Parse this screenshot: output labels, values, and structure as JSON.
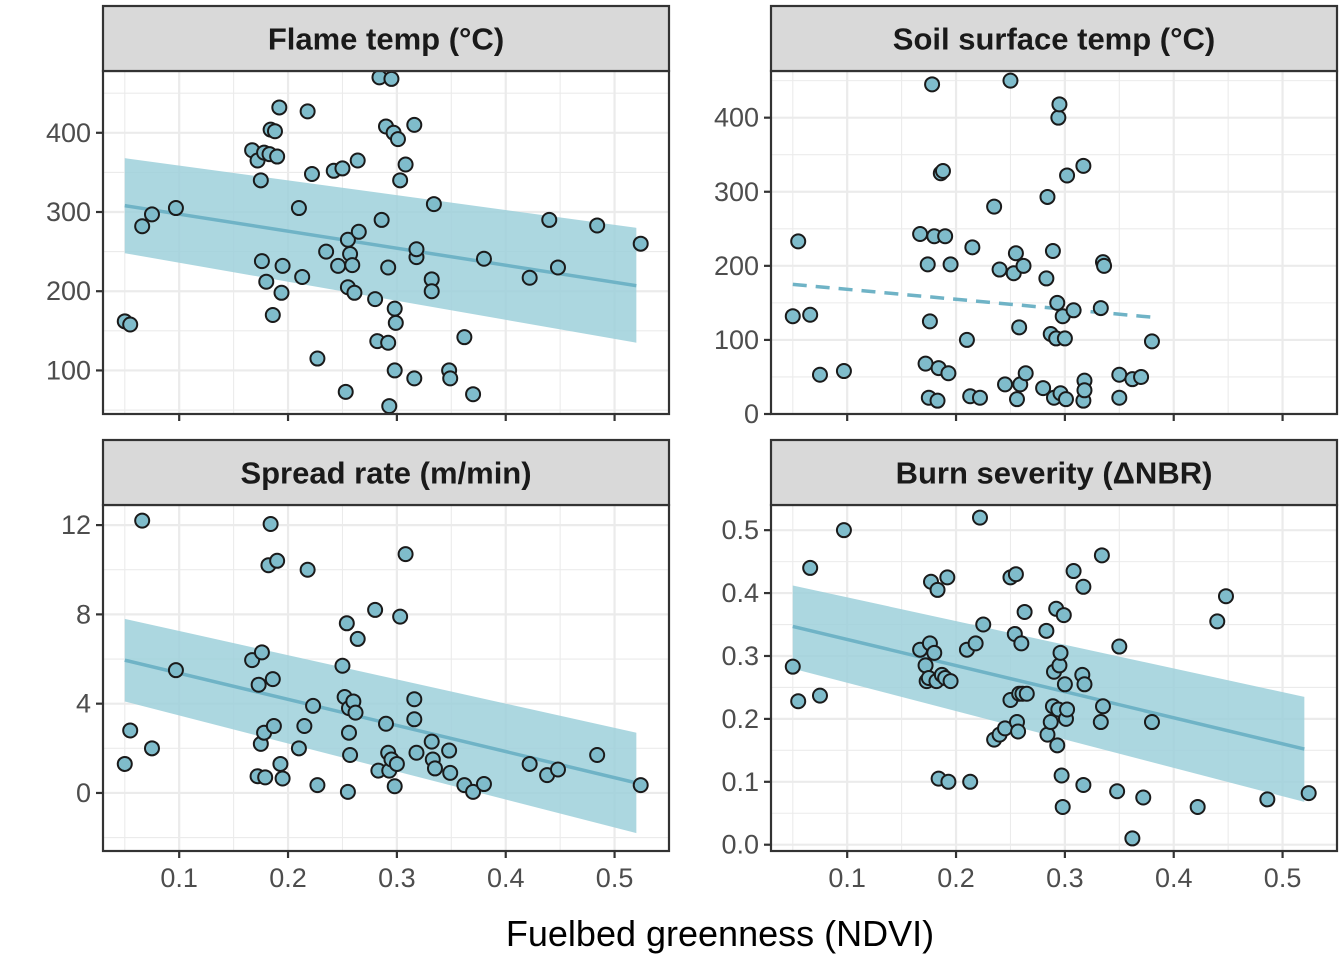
{
  "xlabel": "Fuelbed greenness (NDVI)",
  "colors": {
    "point_fill": "#7FBCCB",
    "point_stroke": "#1a1a1a",
    "line": "#6FB3C6",
    "ribbon": "#9ED0DB",
    "grid": "#EBEBEB",
    "strip": "#D9D9D9"
  },
  "chart_data": [
    {
      "type": "scatter",
      "title": "Flame temp (°C)",
      "xlim": [
        0.03,
        0.55
      ],
      "ylim": [
        45,
        478
      ],
      "xticks": [
        0.1,
        0.2,
        0.3,
        0.4,
        0.5
      ],
      "xtick_labels": [
        "0.1",
        "0.2",
        "0.3",
        "0.4",
        "0.5"
      ],
      "yticks": [
        100,
        200,
        300,
        400
      ],
      "ytick_labels": [
        "100",
        "200",
        "300",
        "400"
      ],
      "fit": {
        "style": "solid",
        "x": [
          0.05,
          0.52
        ],
        "y": [
          308,
          207
        ],
        "ci_lower": [
          248,
          135
        ],
        "ci_upper": [
          368,
          280
        ]
      },
      "points": [
        [
          0.05,
          162
        ],
        [
          0.055,
          158
        ],
        [
          0.066,
          282
        ],
        [
          0.075,
          297
        ],
        [
          0.097,
          305
        ],
        [
          0.167,
          378
        ],
        [
          0.172,
          365
        ],
        [
          0.175,
          340
        ],
        [
          0.176,
          238
        ],
        [
          0.178,
          375
        ],
        [
          0.18,
          212
        ],
        [
          0.183,
          373
        ],
        [
          0.184,
          404
        ],
        [
          0.186,
          170
        ],
        [
          0.188,
          402
        ],
        [
          0.19,
          370
        ],
        [
          0.192,
          432
        ],
        [
          0.194,
          198
        ],
        [
          0.195,
          232
        ],
        [
          0.21,
          305
        ],
        [
          0.213,
          218
        ],
        [
          0.218,
          427
        ],
        [
          0.222,
          348
        ],
        [
          0.227,
          115
        ],
        [
          0.235,
          250
        ],
        [
          0.242,
          352
        ],
        [
          0.246,
          232
        ],
        [
          0.25,
          355
        ],
        [
          0.253,
          73
        ],
        [
          0.255,
          205
        ],
        [
          0.255,
          265
        ],
        [
          0.257,
          247
        ],
        [
          0.259,
          233
        ],
        [
          0.261,
          198
        ],
        [
          0.264,
          365
        ],
        [
          0.265,
          275
        ],
        [
          0.28,
          190
        ],
        [
          0.282,
          137
        ],
        [
          0.284,
          470
        ],
        [
          0.286,
          290
        ],
        [
          0.29,
          408
        ],
        [
          0.292,
          135
        ],
        [
          0.292,
          230
        ],
        [
          0.293,
          55
        ],
        [
          0.295,
          468
        ],
        [
          0.297,
          400
        ],
        [
          0.298,
          100
        ],
        [
          0.298,
          178
        ],
        [
          0.299,
          160
        ],
        [
          0.301,
          392
        ],
        [
          0.303,
          340
        ],
        [
          0.308,
          360
        ],
        [
          0.316,
          90
        ],
        [
          0.316,
          410
        ],
        [
          0.318,
          243
        ],
        [
          0.318,
          253
        ],
        [
          0.332,
          215
        ],
        [
          0.332,
          200
        ],
        [
          0.334,
          310
        ],
        [
          0.348,
          100
        ],
        [
          0.349,
          90
        ],
        [
          0.362,
          142
        ],
        [
          0.37,
          70
        ],
        [
          0.38,
          241
        ],
        [
          0.422,
          217
        ],
        [
          0.44,
          290
        ],
        [
          0.448,
          230
        ],
        [
          0.484,
          283
        ],
        [
          0.524,
          260
        ]
      ]
    },
    {
      "type": "scatter",
      "title": "Soil surface temp (°C)",
      "xlim": [
        0.03,
        0.55
      ],
      "ylim": [
        0,
        463
      ],
      "xticks": [
        0.1,
        0.2,
        0.3,
        0.4,
        0.5
      ],
      "xtick_labels": [
        "0.1",
        "0.2",
        "0.3",
        "0.4",
        "0.5"
      ],
      "yticks": [
        0,
        100,
        200,
        300,
        400
      ],
      "ytick_labels": [
        "0",
        "100",
        "200",
        "300",
        "400"
      ],
      "fit": {
        "style": "dashed",
        "x": [
          0.05,
          0.385
        ],
        "y": [
          175,
          130
        ]
      },
      "points": [
        [
          0.05,
          132
        ],
        [
          0.055,
          233
        ],
        [
          0.066,
          134
        ],
        [
          0.075,
          53
        ],
        [
          0.097,
          58
        ],
        [
          0.167,
          243
        ],
        [
          0.172,
          68
        ],
        [
          0.174,
          202
        ],
        [
          0.175,
          22
        ],
        [
          0.176,
          125
        ],
        [
          0.178,
          445
        ],
        [
          0.18,
          240
        ],
        [
          0.183,
          18
        ],
        [
          0.184,
          62
        ],
        [
          0.186,
          325
        ],
        [
          0.188,
          328
        ],
        [
          0.19,
          240
        ],
        [
          0.193,
          55
        ],
        [
          0.195,
          202
        ],
        [
          0.21,
          100
        ],
        [
          0.213,
          24
        ],
        [
          0.215,
          225
        ],
        [
          0.222,
          22
        ],
        [
          0.235,
          280
        ],
        [
          0.24,
          195
        ],
        [
          0.245,
          40
        ],
        [
          0.25,
          450
        ],
        [
          0.253,
          190
        ],
        [
          0.255,
          217
        ],
        [
          0.256,
          20
        ],
        [
          0.258,
          117
        ],
        [
          0.259,
          40
        ],
        [
          0.262,
          200
        ],
        [
          0.264,
          55
        ],
        [
          0.28,
          35
        ],
        [
          0.283,
          183
        ],
        [
          0.284,
          293
        ],
        [
          0.287,
          108
        ],
        [
          0.289,
          220
        ],
        [
          0.29,
          22
        ],
        [
          0.292,
          102
        ],
        [
          0.293,
          150
        ],
        [
          0.294,
          400
        ],
        [
          0.295,
          418
        ],
        [
          0.296,
          28
        ],
        [
          0.298,
          132
        ],
        [
          0.3,
          102
        ],
        [
          0.301,
          20
        ],
        [
          0.302,
          322
        ],
        [
          0.308,
          140
        ],
        [
          0.317,
          18
        ],
        [
          0.317,
          335
        ],
        [
          0.318,
          45
        ],
        [
          0.318,
          32
        ],
        [
          0.333,
          143
        ],
        [
          0.335,
          205
        ],
        [
          0.336,
          200
        ],
        [
          0.35,
          22
        ],
        [
          0.35,
          53
        ],
        [
          0.362,
          47
        ],
        [
          0.37,
          50
        ],
        [
          0.38,
          98
        ]
      ]
    },
    {
      "type": "scatter",
      "title": "Spread rate (m/min)",
      "xlim": [
        0.03,
        0.55
      ],
      "ylim": [
        -2.6,
        12.9
      ],
      "xticks": [
        0.1,
        0.2,
        0.3,
        0.4,
        0.5
      ],
      "xtick_labels": [
        "0.1",
        "0.2",
        "0.3",
        "0.4",
        "0.5"
      ],
      "yticks": [
        0,
        4,
        8,
        12
      ],
      "ytick_labels": [
        "0",
        "4",
        "8",
        "12"
      ],
      "fit": {
        "style": "solid",
        "x": [
          0.05,
          0.52
        ],
        "y": [
          5.95,
          0.45
        ],
        "ci_lower": [
          4.1,
          -1.8
        ],
        "ci_upper": [
          7.8,
          2.7
        ]
      },
      "points": [
        [
          0.05,
          1.3
        ],
        [
          0.055,
          2.8
        ],
        [
          0.066,
          12.2
        ],
        [
          0.075,
          2.0
        ],
        [
          0.097,
          5.5
        ],
        [
          0.167,
          5.95
        ],
        [
          0.172,
          0.75
        ],
        [
          0.173,
          4.85
        ],
        [
          0.175,
          2.2
        ],
        [
          0.176,
          6.3
        ],
        [
          0.178,
          2.7
        ],
        [
          0.179,
          0.7
        ],
        [
          0.182,
          10.2
        ],
        [
          0.184,
          12.05
        ],
        [
          0.186,
          5.1
        ],
        [
          0.187,
          3.0
        ],
        [
          0.19,
          10.4
        ],
        [
          0.193,
          1.3
        ],
        [
          0.195,
          0.65
        ],
        [
          0.21,
          2.0
        ],
        [
          0.215,
          3.0
        ],
        [
          0.218,
          10.0
        ],
        [
          0.223,
          3.9
        ],
        [
          0.227,
          0.35
        ],
        [
          0.25,
          5.7
        ],
        [
          0.252,
          4.3
        ],
        [
          0.254,
          7.6
        ],
        [
          0.255,
          0.05
        ],
        [
          0.256,
          3.8
        ],
        [
          0.256,
          2.7
        ],
        [
          0.257,
          1.7
        ],
        [
          0.26,
          4.1
        ],
        [
          0.262,
          3.6
        ],
        [
          0.264,
          6.9
        ],
        [
          0.28,
          8.2
        ],
        [
          0.283,
          1.0
        ],
        [
          0.29,
          3.1
        ],
        [
          0.292,
          1.8
        ],
        [
          0.293,
          1.0
        ],
        [
          0.295,
          1.5
        ],
        [
          0.298,
          0.3
        ],
        [
          0.3,
          1.3
        ],
        [
          0.303,
          7.9
        ],
        [
          0.308,
          10.7
        ],
        [
          0.316,
          4.2
        ],
        [
          0.316,
          3.3
        ],
        [
          0.318,
          1.8
        ],
        [
          0.332,
          2.3
        ],
        [
          0.333,
          1.5
        ],
        [
          0.335,
          1.1
        ],
        [
          0.348,
          1.9
        ],
        [
          0.349,
          0.9
        ],
        [
          0.362,
          0.35
        ],
        [
          0.37,
          0.05
        ],
        [
          0.38,
          0.4
        ],
        [
          0.422,
          1.3
        ],
        [
          0.438,
          0.8
        ],
        [
          0.448,
          1.05
        ],
        [
          0.484,
          1.7
        ],
        [
          0.524,
          0.35
        ]
      ]
    },
    {
      "type": "scatter",
      "title": "Burn severity (ΔNBR)",
      "xlim": [
        0.03,
        0.55
      ],
      "ylim": [
        -0.01,
        0.54
      ],
      "xticks": [
        0.1,
        0.2,
        0.3,
        0.4,
        0.5
      ],
      "xtick_labels": [
        "0.1",
        "0.2",
        "0.3",
        "0.4",
        "0.5"
      ],
      "yticks": [
        0.0,
        0.1,
        0.2,
        0.3,
        0.4,
        0.5
      ],
      "ytick_labels": [
        "0.0",
        "0.1",
        "0.2",
        "0.3",
        "0.4",
        "0.5"
      ],
      "fit": {
        "style": "solid",
        "x": [
          0.05,
          0.52
        ],
        "y": [
          0.347,
          0.152
        ],
        "ci_lower": [
          0.28,
          0.068
        ],
        "ci_upper": [
          0.412,
          0.235
        ]
      },
      "points": [
        [
          0.05,
          0.283
        ],
        [
          0.055,
          0.228
        ],
        [
          0.066,
          0.44
        ],
        [
          0.075,
          0.237
        ],
        [
          0.097,
          0.5
        ],
        [
          0.167,
          0.31
        ],
        [
          0.172,
          0.285
        ],
        [
          0.173,
          0.26
        ],
        [
          0.175,
          0.265
        ],
        [
          0.176,
          0.32
        ],
        [
          0.177,
          0.418
        ],
        [
          0.18,
          0.305
        ],
        [
          0.182,
          0.26
        ],
        [
          0.183,
          0.405
        ],
        [
          0.184,
          0.105
        ],
        [
          0.187,
          0.27
        ],
        [
          0.19,
          0.265
        ],
        [
          0.192,
          0.425
        ],
        [
          0.193,
          0.1
        ],
        [
          0.195,
          0.26
        ],
        [
          0.21,
          0.31
        ],
        [
          0.213,
          0.1
        ],
        [
          0.218,
          0.32
        ],
        [
          0.222,
          0.52
        ],
        [
          0.225,
          0.35
        ],
        [
          0.235,
          0.167
        ],
        [
          0.24,
          0.175
        ],
        [
          0.245,
          0.185
        ],
        [
          0.25,
          0.23
        ],
        [
          0.25,
          0.425
        ],
        [
          0.254,
          0.335
        ],
        [
          0.255,
          0.43
        ],
        [
          0.256,
          0.195
        ],
        [
          0.257,
          0.18
        ],
        [
          0.258,
          0.24
        ],
        [
          0.26,
          0.32
        ],
        [
          0.261,
          0.24
        ],
        [
          0.263,
          0.37
        ],
        [
          0.265,
          0.24
        ],
        [
          0.283,
          0.34
        ],
        [
          0.284,
          0.175
        ],
        [
          0.287,
          0.195
        ],
        [
          0.289,
          0.22
        ],
        [
          0.29,
          0.275
        ],
        [
          0.292,
          0.375
        ],
        [
          0.293,
          0.158
        ],
        [
          0.294,
          0.215
        ],
        [
          0.295,
          0.285
        ],
        [
          0.296,
          0.305
        ],
        [
          0.297,
          0.11
        ],
        [
          0.298,
          0.06
        ],
        [
          0.299,
          0.365
        ],
        [
          0.3,
          0.255
        ],
        [
          0.301,
          0.2
        ],
        [
          0.302,
          0.215
        ],
        [
          0.308,
          0.435
        ],
        [
          0.316,
          0.27
        ],
        [
          0.317,
          0.095
        ],
        [
          0.317,
          0.41
        ],
        [
          0.318,
          0.255
        ],
        [
          0.333,
          0.195
        ],
        [
          0.334,
          0.46
        ],
        [
          0.335,
          0.22
        ],
        [
          0.348,
          0.085
        ],
        [
          0.35,
          0.315
        ],
        [
          0.362,
          0.01
        ],
        [
          0.372,
          0.075
        ],
        [
          0.38,
          0.195
        ],
        [
          0.422,
          0.06
        ],
        [
          0.44,
          0.355
        ],
        [
          0.448,
          0.395
        ],
        [
          0.486,
          0.072
        ],
        [
          0.524,
          0.082
        ]
      ]
    }
  ]
}
